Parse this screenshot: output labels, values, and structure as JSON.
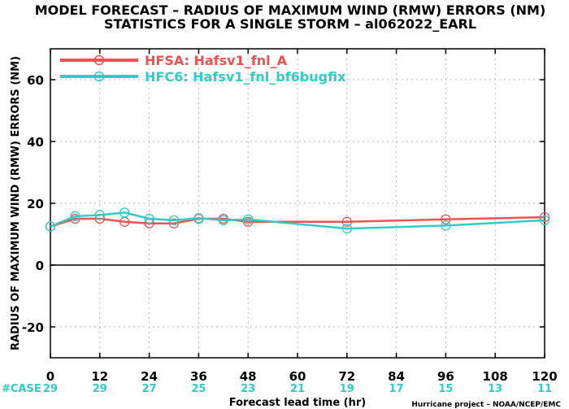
{
  "chart_data": {
    "type": "line",
    "title_lines": [
      "MODEL FORECAST – RADIUS OF MAXIMUM WIND (RMW) ERRORS (NM)",
      "STATISTICS FOR A SINGLE STORM – al062022_EARL"
    ],
    "xlabel": "Forecast lead time (hr)",
    "ylabel": "RADIUS OF MAXIMUM WIND (RMW) ERRORS (NM)",
    "xlim": [
      0,
      120
    ],
    "ylim": [
      -30,
      70
    ],
    "xticks": [
      0,
      12,
      24,
      36,
      48,
      60,
      72,
      84,
      96,
      108,
      120
    ],
    "yticks": [
      -20,
      0,
      20,
      40,
      60
    ],
    "grid": true,
    "legend_position": "top-left",
    "series": [
      {
        "name": "HFSA: Hafsv1_fnl_A",
        "color": "#f25050",
        "x": [
          0,
          6,
          12,
          18,
          24,
          30,
          36,
          42,
          48,
          72,
          96,
          120
        ],
        "y": [
          12.5,
          15,
          15,
          14,
          13.5,
          13.5,
          15,
          15,
          14,
          14,
          14.8,
          15.5
        ]
      },
      {
        "name": "HFC6: Hafsv1_fnl_bf6bugfix",
        "color": "#2ecdc8",
        "x": [
          0,
          6,
          12,
          18,
          24,
          30,
          36,
          42,
          48,
          72,
          96,
          120
        ],
        "y": [
          12.5,
          15.8,
          16.2,
          17,
          15,
          14.5,
          15.2,
          14.5,
          14.8,
          11.8,
          12.8,
          14.5
        ]
      }
    ],
    "cases": {
      "label": "#CASE",
      "color": "#2ecdc8",
      "x": [
        0,
        12,
        24,
        36,
        48,
        60,
        72,
        84,
        96,
        108,
        120
      ],
      "values": [
        "29",
        "29",
        "27",
        "25",
        "23",
        "21",
        "19",
        "17",
        "15",
        "13",
        "11"
      ]
    }
  },
  "footer": {
    "credit": "Hurricane project – NOAA/NCEP/EMC"
  }
}
